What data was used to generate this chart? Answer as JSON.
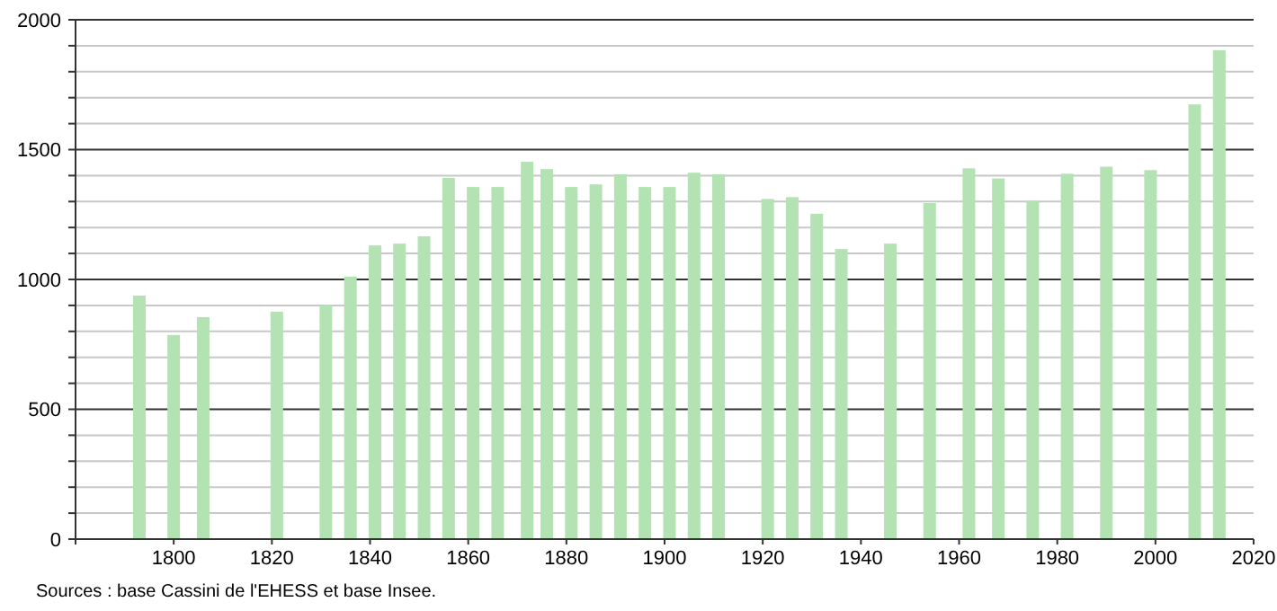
{
  "chart_data": {
    "type": "bar",
    "x": [
      1793,
      1800,
      1806,
      1821,
      1831,
      1836,
      1841,
      1846,
      1851,
      1856,
      1861,
      1866,
      1872,
      1876,
      1881,
      1886,
      1891,
      1896,
      1901,
      1906,
      1911,
      1921,
      1926,
      1931,
      1936,
      1946,
      1954,
      1962,
      1968,
      1975,
      1982,
      1990,
      1999,
      2008,
      2013
    ],
    "values": [
      938,
      786,
      855,
      876,
      901,
      1011,
      1131,
      1138,
      1166,
      1391,
      1356,
      1356,
      1453,
      1425,
      1356,
      1366,
      1405,
      1356,
      1356,
      1411,
      1405,
      1310,
      1317,
      1253,
      1117,
      1138,
      1294,
      1428,
      1389,
      1303,
      1407,
      1434,
      1421,
      1674,
      1883
    ],
    "color": "#b3e2b3",
    "xlim": [
      1780,
      2020
    ],
    "xticks": [
      {
        "value": 1780,
        "label": null
      },
      1800,
      1820,
      1840,
      1860,
      1880,
      1900,
      1920,
      1940,
      1960,
      1980,
      2000,
      2020
    ],
    "ylim": [
      0,
      2000
    ],
    "yticks": [
      0,
      {
        "value": 100,
        "label": null
      },
      {
        "value": 200,
        "label": null
      },
      {
        "value": 300,
        "label": null
      },
      {
        "value": 400,
        "label": null
      },
      500,
      {
        "value": 600,
        "label": null
      },
      {
        "value": 700,
        "label": null
      },
      {
        "value": 800,
        "label": null
      },
      {
        "value": 900,
        "label": null
      },
      1000,
      {
        "value": 1100,
        "label": null
      },
      {
        "value": 1200,
        "label": null
      },
      {
        "value": 1300,
        "label": null
      },
      {
        "value": 1400,
        "label": null
      },
      1500,
      {
        "value": 1600,
        "label": null
      },
      {
        "value": 1700,
        "label": null
      },
      {
        "value": 1800,
        "label": null
      },
      {
        "value": 1900,
        "label": null
      },
      2000
    ],
    "grid": true,
    "annotations": [
      "Sources : base Cassini de l'EHESS et base Insee."
    ]
  }
}
